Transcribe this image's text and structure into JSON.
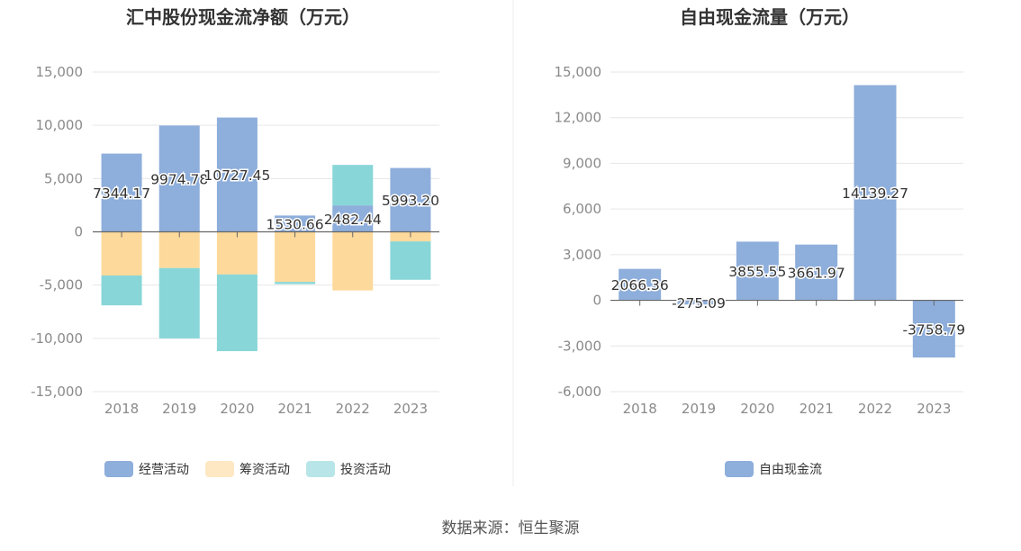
{
  "colors": {
    "operating": "#8eaedb",
    "financing": "#fdd99b",
    "investing": "#88d6d8",
    "free_cash_flow": "#8eaedb",
    "grid": "#e6e6e6",
    "axis": "#666666",
    "tick_text": "#8a8a8a",
    "title_text": "#333333",
    "label_text": "#333333",
    "source_text": "#555555",
    "divider": "#eeeeee"
  },
  "chart_data": [
    {
      "type": "bar",
      "stacked": true,
      "title": "汇中股份现金流净额（万元）",
      "categories": [
        "2018",
        "2019",
        "2020",
        "2021",
        "2022",
        "2023"
      ],
      "ylim": [
        -15000,
        15000
      ],
      "yticks": [
        15000,
        10000,
        5000,
        0,
        -5000,
        -10000,
        -15000
      ],
      "ytick_labels": [
        "15,000",
        "10,000",
        "5,000",
        "0",
        "-5,000",
        "-10,000",
        "-15,000"
      ],
      "series": [
        {
          "name": "经营活动",
          "color_key": "operating",
          "values": [
            7344.17,
            9974.78,
            10727.45,
            1530.66,
            2482.44,
            5993.2
          ]
        },
        {
          "name": "筹资活动",
          "color_key": "financing",
          "values": [
            -4100,
            -3400,
            -4000,
            -4700,
            -5500,
            -900
          ]
        },
        {
          "name": "投资活动",
          "color_key": "investing",
          "values": [
            -2800,
            -6600,
            -7200,
            -200,
            3800,
            -3600
          ]
        }
      ],
      "data_labels": [
        "7344.17",
        "9974.78",
        "10727.45",
        "1530.66",
        "2482.44",
        "5993.20"
      ],
      "legend_position": "bottom-center"
    },
    {
      "type": "bar",
      "title": "自由现金流量（万元）",
      "categories": [
        "2018",
        "2019",
        "2020",
        "2021",
        "2022",
        "2023"
      ],
      "ylim": [
        -6000,
        15000
      ],
      "yticks": [
        15000,
        12000,
        9000,
        6000,
        3000,
        0,
        -3000,
        -6000
      ],
      "ytick_labels": [
        "15,000",
        "12,000",
        "9,000",
        "6,000",
        "3,000",
        "0",
        "-3,000",
        "-6,000"
      ],
      "series": [
        {
          "name": "自由现金流",
          "color_key": "free_cash_flow",
          "values": [
            2066.36,
            -275.09,
            3855.55,
            3661.97,
            14139.27,
            -3758.79
          ]
        }
      ],
      "data_labels": [
        "2066.36",
        "-275.09",
        "3855.55",
        "3661.97",
        "14139.27",
        "-3758.79"
      ],
      "legend_position": "bottom-center"
    }
  ],
  "footer": {
    "source": "数据来源：恒生聚源"
  }
}
